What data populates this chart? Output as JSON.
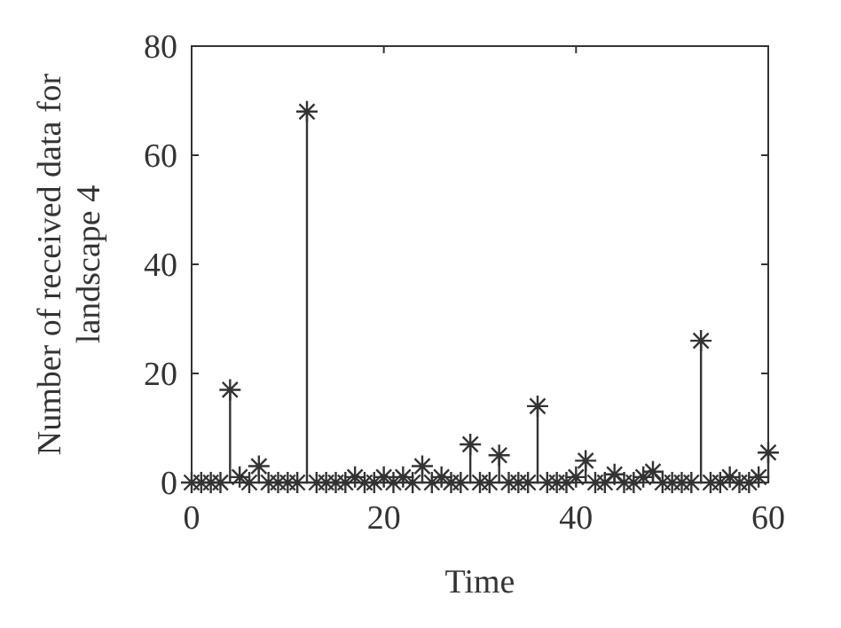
{
  "chart_data": {
    "type": "lollipop",
    "xlabel": "Time",
    "ylabel": "Number of received data for landscape 4",
    "x": [
      0,
      1,
      2,
      3,
      4,
      5,
      6,
      7,
      8,
      9,
      10,
      11,
      12,
      13,
      14,
      15,
      16,
      17,
      18,
      19,
      20,
      21,
      22,
      23,
      24,
      25,
      26,
      27,
      28,
      29,
      30,
      31,
      32,
      33,
      34,
      35,
      36,
      37,
      38,
      39,
      40,
      41,
      42,
      43,
      44,
      45,
      46,
      47,
      48,
      49,
      50,
      51,
      52,
      53,
      54,
      55,
      56,
      57,
      58,
      59,
      60
    ],
    "values": [
      0,
      0,
      0,
      0,
      17,
      1,
      0,
      3,
      0,
      0,
      0,
      0,
      68,
      0,
      0,
      0,
      0,
      1,
      0,
      0,
      1,
      0,
      1,
      0,
      3,
      0,
      1,
      0,
      0,
      7,
      0,
      0,
      5,
      0,
      0,
      0,
      14,
      0,
      0,
      0,
      1,
      4,
      0,
      0,
      1.5,
      0,
      0,
      1,
      2,
      0,
      0,
      0,
      0,
      26,
      0,
      0,
      1,
      0,
      0,
      1,
      5.5
    ],
    "color": "#333333",
    "marker": "cross",
    "xlim": [
      0,
      60
    ],
    "ylim": [
      0,
      80
    ],
    "xticks": [
      0,
      20,
      40,
      60
    ],
    "yticks": [
      0,
      20,
      40,
      60,
      80
    ]
  }
}
